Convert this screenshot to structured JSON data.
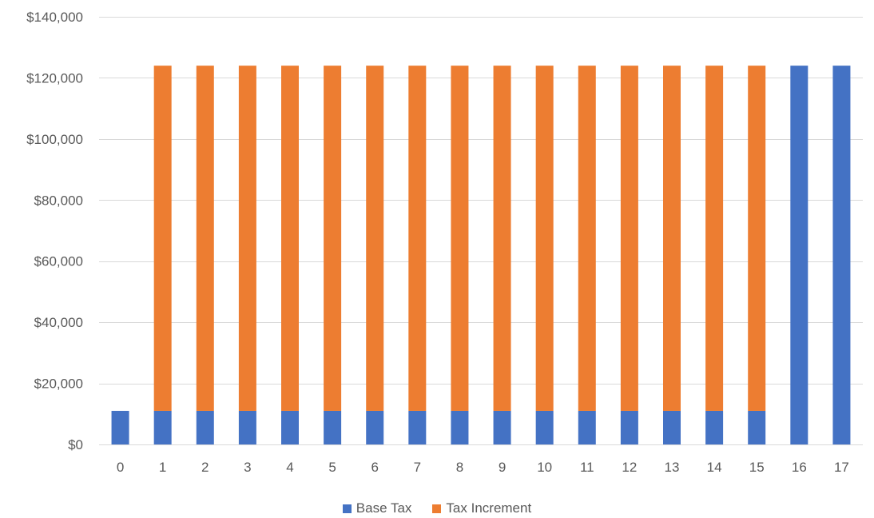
{
  "chart_data": {
    "type": "bar",
    "stacked": true,
    "title": "",
    "xlabel": "",
    "ylabel": "",
    "categories": [
      "0",
      "1",
      "2",
      "3",
      "4",
      "5",
      "6",
      "7",
      "8",
      "9",
      "10",
      "11",
      "12",
      "13",
      "14",
      "15",
      "16",
      "17"
    ],
    "ylim": [
      0,
      140000
    ],
    "y_ticks": [
      0,
      20000,
      40000,
      60000,
      80000,
      100000,
      120000,
      140000
    ],
    "y_tick_labels": [
      "$0",
      "$20,000",
      "$40,000",
      "$60,000",
      "$80,000",
      "$100,000",
      "$120,000",
      "$140,000"
    ],
    "grid": true,
    "legend_position": "bottom",
    "series": [
      {
        "name": "Base Tax",
        "color": "#4472C4",
        "values": [
          11000,
          11000,
          11000,
          11000,
          11000,
          11000,
          11000,
          11000,
          11000,
          11000,
          11000,
          11000,
          11000,
          11000,
          11000,
          11000,
          124000,
          124000
        ]
      },
      {
        "name": "Tax Increment",
        "color": "#ED7D31",
        "values": [
          0,
          113000,
          113000,
          113000,
          113000,
          113000,
          113000,
          113000,
          113000,
          113000,
          113000,
          113000,
          113000,
          113000,
          113000,
          113000,
          0,
          0
        ]
      }
    ]
  }
}
